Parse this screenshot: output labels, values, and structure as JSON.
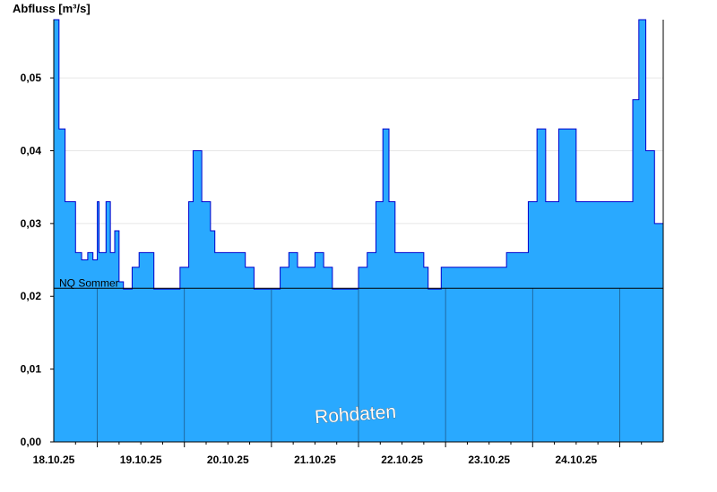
{
  "chart_data": {
    "type": "area",
    "ylabel": "Abfluss [m³/s]",
    "ylim": [
      0,
      0.058
    ],
    "yticks": [
      0,
      0.01,
      0.02,
      0.03,
      0.04,
      0.05
    ],
    "ytick_labels": [
      "0,00",
      "0,01",
      "0,02",
      "0,03",
      "0,04",
      "0,05"
    ],
    "xlim": [
      0,
      7
    ],
    "day_starts": [
      0.5,
      1.5,
      2.5,
      3.5,
      4.5,
      5.5,
      6.5
    ],
    "xtick_labels": [
      "18.10.25",
      "19.10.25",
      "20.10.25",
      "21.10.25",
      "22.10.25",
      "23.10.25",
      "24.10.25"
    ],
    "grid": true,
    "reference_line": {
      "label": "NQ Sommer",
      "value": 0.0211
    },
    "watermark": "Rohdaten",
    "colors": {
      "fill": "#29a9ff",
      "line": "#0000cc",
      "reference": "#000000",
      "grid": "#e6e6e6"
    },
    "series": [
      {
        "values": [
          [
            0.0,
            0.058
          ],
          [
            0.06,
            0.043
          ],
          [
            0.13,
            0.033
          ],
          [
            0.25,
            0.026
          ],
          [
            0.32,
            0.025
          ],
          [
            0.39,
            0.026
          ],
          [
            0.45,
            0.025
          ],
          [
            0.5,
            0.033
          ],
          [
            0.52,
            0.026
          ],
          [
            0.6,
            0.033
          ],
          [
            0.65,
            0.026
          ],
          [
            0.7,
            0.029
          ],
          [
            0.75,
            0.022
          ],
          [
            0.8,
            0.021
          ],
          [
            0.9,
            0.024
          ],
          [
            0.98,
            0.026
          ],
          [
            1.15,
            0.021
          ],
          [
            1.45,
            0.024
          ],
          [
            1.55,
            0.033
          ],
          [
            1.6,
            0.04
          ],
          [
            1.7,
            0.033
          ],
          [
            1.8,
            0.029
          ],
          [
            1.85,
            0.026
          ],
          [
            2.1,
            0.026
          ],
          [
            2.2,
            0.024
          ],
          [
            2.3,
            0.021
          ],
          [
            2.6,
            0.024
          ],
          [
            2.7,
            0.026
          ],
          [
            2.8,
            0.024
          ],
          [
            3.0,
            0.026
          ],
          [
            3.1,
            0.024
          ],
          [
            3.2,
            0.021
          ],
          [
            3.5,
            0.024
          ],
          [
            3.6,
            0.026
          ],
          [
            3.7,
            0.033
          ],
          [
            3.78,
            0.043
          ],
          [
            3.85,
            0.033
          ],
          [
            3.92,
            0.026
          ],
          [
            4.25,
            0.024
          ],
          [
            4.3,
            0.021
          ],
          [
            4.45,
            0.024
          ],
          [
            4.65,
            0.024
          ],
          [
            5.0,
            0.024
          ],
          [
            5.2,
            0.026
          ],
          [
            5.45,
            0.033
          ],
          [
            5.55,
            0.043
          ],
          [
            5.65,
            0.033
          ],
          [
            5.8,
            0.043
          ],
          [
            5.92,
            0.043
          ],
          [
            6.0,
            0.033
          ],
          [
            6.2,
            0.033
          ],
          [
            6.4,
            0.033
          ],
          [
            6.55,
            0.033
          ],
          [
            6.65,
            0.047
          ],
          [
            6.72,
            0.058
          ],
          [
            6.8,
            0.04
          ],
          [
            6.9,
            0.03
          ],
          [
            7.0,
            0.03
          ]
        ]
      }
    ]
  }
}
